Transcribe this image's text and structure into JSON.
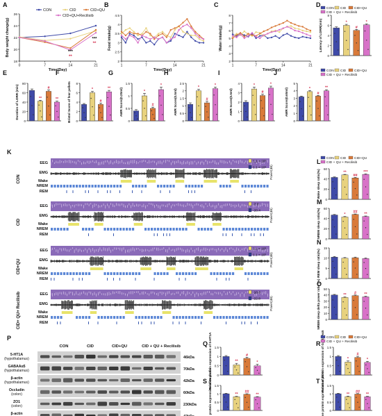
{
  "colors": {
    "con": "#3f4aa8",
    "cid": "#e8d27e",
    "cidqu": "#d97a3a",
    "recil": "#d872c8",
    "sig": "#d4304e",
    "gel_bg": "#d2d2d2",
    "band": "#2b2b2b",
    "eeg_band": "#8a6ab8",
    "power_hi": "#f2e26a",
    "power_lo": "#2a3a8a",
    "wake_bar": "#e8e36a",
    "nrem_bar": "#5a86d6",
    "rem_bar": "#3a5ab0"
  },
  "legends": {
    "top": [
      "CON",
      "CID",
      "CID+QU",
      "CID+QU+Recilisib"
    ],
    "side": [
      "CON",
      "CID",
      "CID+QU",
      "CID + QU + Recilisib"
    ]
  },
  "chart_data": [
    {
      "panel": "A",
      "type": "line",
      "ylabel": "Body weight change(g)",
      "xlabel": "Time(Day)",
      "x": [
        0,
        7,
        14,
        21
      ],
      "xlim": [
        0,
        21
      ],
      "ylim": [
        18,
        26
      ],
      "yticks": [
        18,
        20,
        22,
        24,
        26
      ],
      "series": [
        {
          "name": "CON",
          "values": [
            22.0,
            22.2,
            22.7,
            24.0
          ]
        },
        {
          "name": "CID",
          "values": [
            22.1,
            21.5,
            21.8,
            23.1
          ]
        },
        {
          "name": "CID+QU",
          "values": [
            22.0,
            21.2,
            20.2,
            23.3
          ]
        },
        {
          "name": "CID+QU+Recilisib",
          "values": [
            22.0,
            21.4,
            19.9,
            22.8
          ]
        }
      ],
      "annotations": [
        "***",
        "**",
        "***",
        "**"
      ]
    },
    {
      "panel": "B",
      "type": "line",
      "ylabel": "Food intake(g)",
      "xlabel": "Time(Day)",
      "x": [
        1,
        2,
        3,
        4,
        5,
        6,
        7,
        8,
        9,
        10,
        11,
        12,
        13,
        14,
        15,
        16,
        17,
        18,
        19,
        20,
        21
      ],
      "xlim": [
        1,
        21
      ],
      "ylim": [
        2.0,
        4.5
      ],
      "yticks": [
        2.0,
        2.5,
        3.0,
        3.5,
        4.0,
        4.5
      ],
      "series": [
        {
          "name": "CON",
          "values": [
            3.3,
            3.0,
            3.5,
            3.4,
            3.2,
            3.3,
            3.0,
            3.1,
            2.9,
            3.2,
            3.3,
            3.0,
            3.1,
            3.5,
            3.4,
            3.3,
            3.6,
            3.3,
            3.1,
            3.0,
            3.0
          ]
        },
        {
          "name": "CID",
          "values": [
            3.5,
            3.7,
            3.8,
            3.6,
            3.4,
            3.5,
            3.8,
            3.4,
            3.3,
            3.5,
            3.6,
            3.4,
            3.3,
            3.7,
            3.9,
            3.6,
            3.5,
            3.4,
            3.4,
            3.2,
            3.1
          ]
        },
        {
          "name": "CID+QU",
          "values": [
            3.6,
            3.4,
            3.6,
            3.5,
            3.5,
            3.4,
            3.6,
            3.5,
            3.2,
            3.4,
            3.5,
            3.3,
            3.7,
            3.8,
            3.9,
            4.1,
            4.3,
            3.9,
            3.6,
            3.4,
            3.2
          ]
        },
        {
          "name": "CID+QU+Recilisib",
          "values": [
            3.4,
            3.2,
            3.4,
            3.3,
            3.0,
            3.4,
            3.3,
            3.2,
            3.3,
            3.2,
            3.3,
            3.0,
            3.2,
            3.3,
            3.7,
            3.9,
            4.0,
            3.8,
            3.5,
            3.3,
            3.2
          ]
        }
      ]
    },
    {
      "panel": "C",
      "type": "line",
      "ylabel": "Water intake(g)",
      "xlabel": "Time(Day)",
      "x": [
        1,
        2,
        3,
        4,
        5,
        6,
        7,
        8,
        9,
        10,
        11,
        12,
        13,
        14,
        15,
        16,
        17,
        18,
        19,
        20,
        21
      ],
      "xlim": [
        1,
        21
      ],
      "ylim": [
        2,
        8
      ],
      "yticks": [
        2,
        3,
        4,
        5,
        6,
        7,
        8
      ],
      "series": [
        {
          "name": "CON",
          "values": [
            5.5,
            5.3,
            5.6,
            5.4,
            5.2,
            5.6,
            5.0,
            5.3,
            5.4,
            5.0,
            5.1,
            5.3,
            5.0,
            5.4,
            5.6,
            5.3,
            5.1,
            5.0,
            5.2,
            5.1,
            5.0
          ]
        },
        {
          "name": "CID",
          "values": [
            5.2,
            5.6,
            5.4,
            5.9,
            5.5,
            5.3,
            5.8,
            5.7,
            5.3,
            5.6,
            5.9,
            6.0,
            5.8,
            6.3,
            6.5,
            6.6,
            6.3,
            6.2,
            6.0,
            5.9,
            5.8
          ]
        },
        {
          "name": "CID+QU",
          "values": [
            5.0,
            5.4,
            5.7,
            5.2,
            5.6,
            5.4,
            5.3,
            5.6,
            5.9,
            6.1,
            6.4,
            6.6,
            6.8,
            7.0,
            7.3,
            7.0,
            6.8,
            6.6,
            6.5,
            6.2,
            6.0
          ]
        },
        {
          "name": "CID+QU+Recilisib",
          "values": [
            5.3,
            5.1,
            5.5,
            5.0,
            5.3,
            5.7,
            5.2,
            5.0,
            5.4,
            5.6,
            5.8,
            5.9,
            6.1,
            6.3,
            6.5,
            6.3,
            6.0,
            5.9,
            5.7,
            5.5,
            5.3
          ]
        }
      ]
    },
    {
      "panel": "D",
      "type": "bar",
      "ylabel": "Latency of LORR(min)",
      "ylim": [
        0,
        8
      ],
      "yticks": [
        0,
        2,
        4,
        6,
        8
      ],
      "categories": [
        "CON",
        "CID",
        "CID+QU",
        "CID+QU+Recilisib"
      ],
      "values": [
        5.5,
        6.0,
        5.0,
        6.1
      ],
      "errors": [
        0.2,
        0.2,
        0.2,
        0.2
      ],
      "marks": [
        "",
        "*",
        "#",
        "*"
      ]
    },
    {
      "panel": "E",
      "type": "bar",
      "ylabel": "Duration of LORR (min)",
      "ylim": [
        0,
        80
      ],
      "yticks": [
        0,
        20,
        40,
        60,
        80
      ],
      "categories": [
        "CON",
        "CID",
        "CID+QU",
        "CID+QU+Recilisib"
      ],
      "values": [
        65,
        42,
        63,
        40
      ],
      "errors": [
        3,
        2,
        3,
        2
      ],
      "marks": [
        "",
        "**",
        "#",
        "**"
      ]
    },
    {
      "panel": "F",
      "type": "bar",
      "ylabel": "Bristol Score of fear pellets",
      "ylim": [
        0,
        8
      ],
      "yticks": [
        0,
        2,
        4,
        6,
        8
      ],
      "categories": [
        "CON",
        "CID",
        "CID+QU",
        "CID+QU+Recilisib"
      ],
      "values": [
        3.5,
        6.0,
        3.5,
        6.2
      ],
      "errors": [
        0.2,
        0.3,
        0.3,
        0.3
      ],
      "marks": [
        "",
        "*",
        "#",
        "**"
      ]
    },
    {
      "panel": "G",
      "type": "bar",
      "ylabel": "AWR Score(0.25ml)",
      "ylim": [
        0,
        1.5
      ],
      "yticks": [
        0.0,
        0.5,
        1.0,
        1.5
      ],
      "categories": [
        "CON",
        "CID",
        "CID+QU",
        "CID+QU+Recilisib"
      ],
      "values": [
        0.4,
        1.0,
        0.5,
        1.25
      ],
      "errors": [
        0.05,
        0.1,
        0.05,
        0.1
      ],
      "marks": [
        "",
        "*",
        "#",
        "*"
      ]
    },
    {
      "panel": "H",
      "type": "bar",
      "ylabel": "AWR Score(0.5ml)",
      "ylim": [
        0,
        2.5
      ],
      "yticks": [
        0.0,
        0.5,
        1.0,
        1.5,
        2.0,
        2.5
      ],
      "categories": [
        "CON",
        "CID",
        "CID+QU",
        "CID+QU+Recilisib"
      ],
      "values": [
        1.1,
        2.0,
        1.2,
        2.15
      ],
      "errors": [
        0.1,
        0.1,
        0.1,
        0.1
      ],
      "marks": [
        "",
        "*",
        "#",
        "*"
      ]
    },
    {
      "panel": "I",
      "type": "bar",
      "ylabel": "AWR Score(0.5ml)",
      "ylim": [
        0,
        4
      ],
      "yticks": [
        0,
        1,
        2,
        3,
        4
      ],
      "categories": [
        "CON",
        "CID",
        "CID+QU",
        "CID+QU+Recilisib"
      ],
      "values": [
        2.0,
        3.4,
        2.7,
        3.5
      ],
      "errors": [
        0.15,
        0.2,
        0.15,
        0.2
      ],
      "marks": [
        "",
        "*",
        "#",
        "*"
      ]
    },
    {
      "panel": "J",
      "type": "bar",
      "ylabel": "AWR Score(0.65ml)",
      "ylim": [
        0,
        5
      ],
      "yticks": [
        0,
        1,
        2,
        3,
        4,
        5
      ],
      "categories": [
        "CON",
        "CID",
        "CID+QU",
        "CID+QU+Recilisib"
      ],
      "values": [
        3.2,
        3.9,
        3.3,
        4.0
      ],
      "errors": [
        0.1,
        0.15,
        0.1,
        0.15
      ],
      "marks": [
        "",
        "*",
        "#",
        "**"
      ]
    },
    {
      "panel": "L",
      "type": "bar",
      "ylabel": "Wake sleep ratio(%)",
      "ylim": [
        0,
        60
      ],
      "yticks": [
        0,
        20,
        40,
        60
      ],
      "categories": [
        "CON",
        "CID",
        "CID+QU",
        "CID+QU+Recilisib"
      ],
      "values": [
        43,
        48,
        42,
        49
      ],
      "errors": [
        1,
        1,
        1,
        1
      ],
      "marks": [
        "",
        "**",
        "##",
        "***"
      ]
    },
    {
      "panel": "M",
      "type": "bar",
      "ylabel": "NREM sleep ratio(%)",
      "ylim": [
        0,
        60
      ],
      "yticks": [
        0,
        20,
        40,
        60
      ],
      "categories": [
        "CON",
        "CID",
        "CID+QU",
        "CID+QU+Recilisib"
      ],
      "values": [
        47,
        43,
        48,
        44
      ],
      "errors": [
        1,
        1,
        1,
        1
      ],
      "marks": [
        "",
        "*",
        "##",
        "**"
      ]
    },
    {
      "panel": "N",
      "type": "bar",
      "ylabel": "REM sleep ratio(%)",
      "ylim": [
        0,
        15
      ],
      "yticks": [
        0,
        5,
        10,
        15
      ],
      "categories": [
        "CON",
        "CID",
        "CID+QU",
        "CID+QU+Recilisib"
      ],
      "values": [
        10.5,
        10.0,
        10.2,
        9.8
      ],
      "errors": [
        0.3,
        0.3,
        0.3,
        0.3
      ],
      "marks": [
        "",
        "",
        "",
        ""
      ]
    },
    {
      "panel": "O",
      "type": "bar",
      "ylabel": "NREM sleep delta power ratio (%)",
      "ylim": [
        0,
        50
      ],
      "yticks": [
        0,
        10,
        20,
        30,
        40,
        50
      ],
      "categories": [
        "CON",
        "CID",
        "CID+QU",
        "CID+QU+Recilisib"
      ],
      "values": [
        40,
        36,
        39,
        37
      ],
      "errors": [
        1,
        1,
        1,
        1
      ],
      "marks": [
        "",
        "**",
        "#",
        "**"
      ]
    },
    {
      "panel": "Q",
      "type": "bar",
      "ylabel": "Relative protein expression of 5-HT1A",
      "ylim": [
        0,
        1.5
      ],
      "yticks": [
        0.0,
        0.5,
        1.0,
        1.5
      ],
      "categories": [
        "CON",
        "CID",
        "CID+QU",
        "CID+QU+Recilisib"
      ],
      "values": [
        1.0,
        0.55,
        0.9,
        0.5
      ],
      "errors": [
        0.05,
        0.08,
        0.06,
        0.08
      ],
      "marks": [
        "",
        "**",
        "#",
        "*"
      ]
    },
    {
      "panel": "R",
      "type": "bar",
      "ylabel": "Relative protein expression of GABAAα5",
      "ylim": [
        0,
        1.5
      ],
      "yticks": [
        0.0,
        0.5,
        1.0,
        1.5
      ],
      "categories": [
        "CON",
        "CID",
        "CID+QU",
        "CID+QU+Recilisib"
      ],
      "values": [
        1.0,
        0.7,
        0.95,
        0.68
      ],
      "errors": [
        0.05,
        0.06,
        0.06,
        0.06
      ],
      "marks": [
        "",
        "*",
        "#",
        "*"
      ]
    },
    {
      "panel": "S",
      "type": "bar",
      "ylabel": "Relative protein expression of Occludin",
      "ylim": [
        0,
        1.5
      ],
      "yticks": [
        0.0,
        0.5,
        1.0,
        1.5
      ],
      "categories": [
        "CON",
        "CID",
        "CID+QU",
        "CID+QU+Recilisib"
      ],
      "values": [
        1.0,
        0.82,
        0.97,
        0.8
      ],
      "errors": [
        0.03,
        0.03,
        0.03,
        0.03
      ],
      "marks": [
        "",
        "**",
        "##",
        "**"
      ]
    },
    {
      "panel": "T",
      "type": "bar",
      "ylabel": "Relative protein expression of ZO-1",
      "ylim": [
        0,
        1.5
      ],
      "yticks": [
        0.0,
        0.5,
        1.0,
        1.5
      ],
      "categories": [
        "CON",
        "CID",
        "CID+QU",
        "CID+QU+Recilisib"
      ],
      "values": [
        1.0,
        0.83,
        0.98,
        0.82
      ],
      "errors": [
        0.03,
        0.03,
        0.03,
        0.03
      ],
      "marks": [
        "",
        "**",
        "##",
        "**"
      ]
    }
  ],
  "eeg": {
    "panel": "K",
    "rows": [
      {
        "group": "CON",
        "scale_hi": "1.1 × 10³",
        "scale_lo": "1.1 × 10²",
        "bursts": [
          [
            0.32,
            0.37
          ],
          [
            0.44,
            0.48
          ],
          [
            0.57,
            0.61
          ],
          [
            0.7,
            0.76
          ],
          [
            0.82,
            0.86
          ]
        ]
      },
      {
        "group": "CID",
        "scale_hi": "-7.0",
        "scale_lo": "-20.4",
        "bursts": [
          [
            0.08,
            0.13
          ],
          [
            0.2,
            0.24
          ],
          [
            0.38,
            0.42
          ],
          [
            0.62,
            0.66
          ],
          [
            0.74,
            0.78
          ]
        ]
      },
      {
        "group": "CID+QU",
        "scale_hi": "1.1 × 10³",
        "scale_lo": "1.1 × 10²",
        "bursts": [
          [
            0.18,
            0.24
          ],
          [
            0.41,
            0.46
          ],
          [
            0.53,
            0.57
          ],
          [
            0.66,
            0.72
          ],
          [
            0.84,
            0.88
          ]
        ]
      },
      {
        "group": "CID+ QU+ Recilisib",
        "scale_hi": "-10.8",
        "scale_lo": "-22.8",
        "bursts": [
          [
            0.05,
            0.1
          ],
          [
            0.18,
            0.21
          ],
          [
            0.34,
            0.38
          ],
          [
            0.51,
            0.55
          ],
          [
            0.7,
            0.74
          ]
        ]
      }
    ],
    "trace_labels": [
      "EEG",
      "EMG",
      "Wake",
      "NREM",
      "REM"
    ],
    "power_label": "Power(dB)"
  },
  "western": {
    "panel": "P",
    "groups": [
      "CON",
      "CID",
      "CID+QU",
      "CID + QU + Recilisib"
    ],
    "rows": [
      {
        "label": "5-HT1A (hypothalamus)",
        "kda": "46kDa"
      },
      {
        "label": "GABAAα5 (hypothalamus)",
        "kda": "70kDa"
      },
      {
        "label": "β-actin (hypothalamus)",
        "kda": "42kDa"
      },
      {
        "label": "Occludin (colon)",
        "kda": "60kDa"
      },
      {
        "label": "ZO1 (colon)",
        "kda": "230kDa"
      },
      {
        "label": "β-actin (colon)",
        "kda": "42kDa"
      }
    ]
  },
  "panel_letters": [
    "A",
    "B",
    "C",
    "D",
    "E",
    "F",
    "G",
    "H",
    "I",
    "J",
    "K",
    "L",
    "M",
    "N",
    "O",
    "P",
    "Q",
    "R",
    "S",
    "T"
  ]
}
